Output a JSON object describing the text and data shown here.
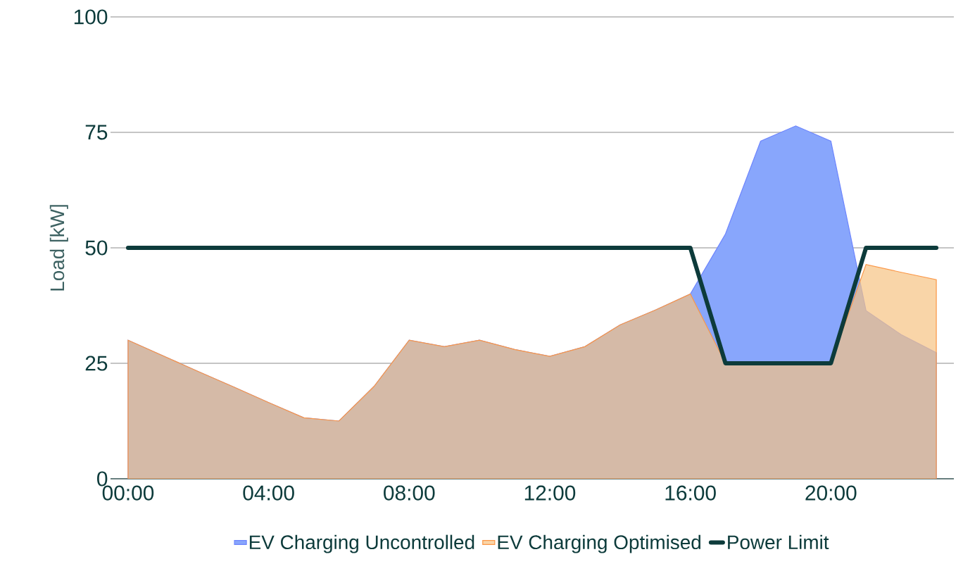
{
  "chart_data": {
    "type": "area",
    "ylabel": "Load [kW]",
    "x": [
      0,
      1,
      2,
      3,
      4,
      5,
      6,
      7,
      8,
      9,
      10,
      11,
      12,
      13,
      14,
      15,
      16,
      17,
      18,
      19,
      20,
      21,
      22,
      23
    ],
    "series": [
      {
        "name": "EV Charging Uncontrolled",
        "color": "#88a6fc",
        "values": [
          30,
          26.6,
          23.2,
          19.9,
          16.5,
          13.2,
          12.5,
          20,
          30,
          28.6,
          30,
          28,
          26.5,
          28.6,
          33.3,
          36.5,
          40,
          53,
          73.1,
          76.4,
          73.1,
          36.4,
          31.2,
          27.3
        ]
      },
      {
        "name": "EV Charging Optimised",
        "color": "#f7c383",
        "values": [
          30,
          26.6,
          23.2,
          19.9,
          16.5,
          13.2,
          12.5,
          20,
          30,
          28.6,
          30,
          28,
          26.5,
          28.6,
          33.3,
          36.5,
          40,
          25,
          25,
          25,
          25,
          46.4,
          44.7,
          43.1
        ]
      },
      {
        "name": "Power Limit",
        "type": "line",
        "color": "#0d3b3b",
        "line_style": "solid",
        "values": [
          50,
          50,
          50,
          50,
          50,
          50,
          50,
          50,
          50,
          50,
          50,
          50,
          50,
          50,
          50,
          50,
          50,
          25,
          25,
          25,
          25,
          50,
          50,
          50
        ]
      }
    ],
    "xlim": [
      -0.5,
      23.5
    ],
    "xticks": [
      {
        "value": 0,
        "label": "00:00"
      },
      {
        "value": 4,
        "label": "04:00"
      },
      {
        "value": 8,
        "label": "08:00"
      },
      {
        "value": 12,
        "label": "12:00"
      },
      {
        "value": 16,
        "label": "16:00"
      },
      {
        "value": 20,
        "label": "20:00"
      }
    ],
    "ylim": [
      0,
      100
    ],
    "yticks": [
      0,
      25,
      50,
      75,
      100
    ],
    "grid": "y",
    "legend": "bottom",
    "marker": "none"
  }
}
